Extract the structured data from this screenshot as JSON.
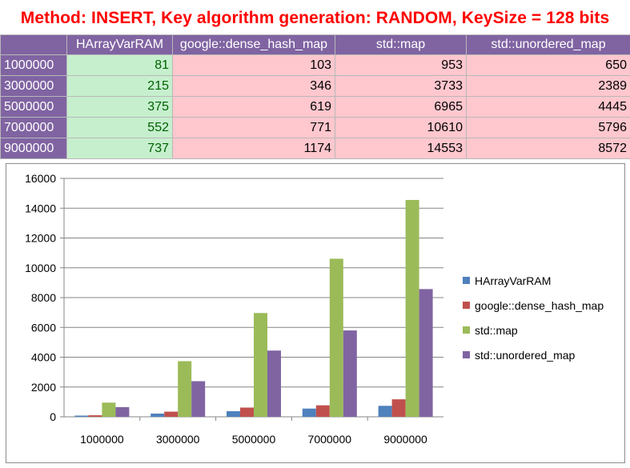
{
  "title": "Method: INSERT, Key algorithm generation: RANDOM, KeySize = 128 bits",
  "table": {
    "corner": "",
    "headers": [
      "HArrayVarRAM",
      "google::dense_hash_map",
      "std::map",
      "std::unordered_map"
    ],
    "rows": [
      {
        "label": "1000000",
        "values": [
          "81",
          "103",
          "953",
          "650"
        ]
      },
      {
        "label": "3000000",
        "values": [
          "215",
          "346",
          "3733",
          "2389"
        ]
      },
      {
        "label": "5000000",
        "values": [
          "375",
          "619",
          "6965",
          "4445"
        ]
      },
      {
        "label": "7000000",
        "values": [
          "552",
          "771",
          "10610",
          "5796"
        ]
      },
      {
        "label": "9000000",
        "values": [
          "737",
          "1174",
          "14553",
          "8572"
        ]
      }
    ],
    "colors": {
      "header": "#8064a2",
      "good": "#c6efce",
      "good_text": "#006100",
      "bad": "#ffc7ce"
    }
  },
  "chart_data": {
    "type": "bar",
    "title": "",
    "xlabel": "",
    "ylabel": "",
    "categories": [
      "1000000",
      "3000000",
      "5000000",
      "7000000",
      "9000000"
    ],
    "series": [
      {
        "name": "HArrayVarRAM",
        "color": "#4f81bd",
        "values": [
          81,
          215,
          375,
          552,
          737
        ]
      },
      {
        "name": "google::dense_hash_map",
        "color": "#c0504d",
        "values": [
          103,
          346,
          619,
          771,
          1174
        ]
      },
      {
        "name": "std::map",
        "color": "#9bbb59",
        "values": [
          953,
          3733,
          6965,
          10610,
          14553
        ]
      },
      {
        "name": "std::unordered_map",
        "color": "#8064a2",
        "values": [
          650,
          2389,
          4445,
          5796,
          8572
        ]
      }
    ],
    "ylim": [
      0,
      16000
    ],
    "yticks": [
      "0",
      "2000",
      "4000",
      "6000",
      "8000",
      "10000",
      "12000",
      "14000",
      "16000"
    ],
    "grid": true,
    "legend": "right"
  }
}
